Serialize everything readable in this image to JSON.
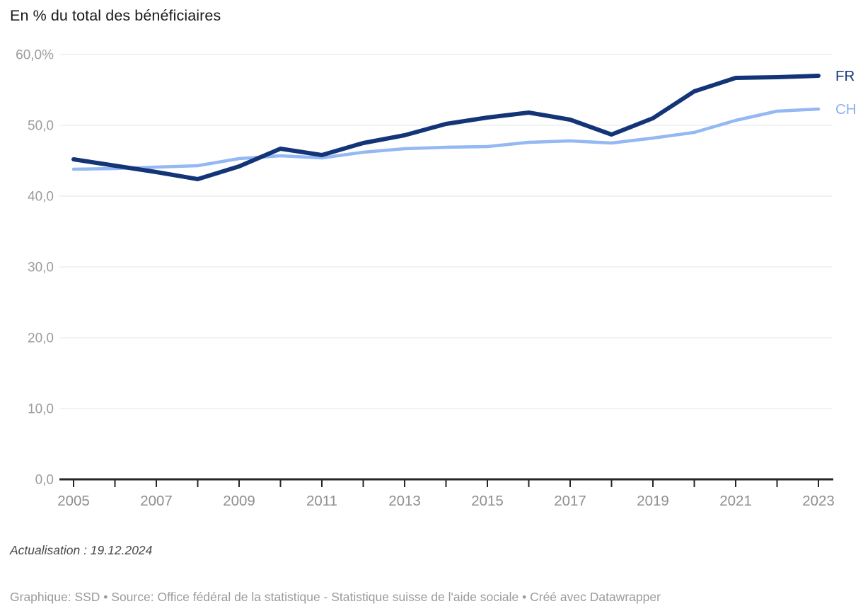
{
  "title": "En % du total des bénéficiaires",
  "notes": "Actualisation : 19.12.2024",
  "footer": {
    "text": "Graphique: SSD • Source: Office fédéral de la statistique - Statistique suisse de l'aide sociale • Créé avec Datawrapper"
  },
  "colors": {
    "fr_line": "#133477",
    "ch_line": "#94b8f3",
    "grid": "#e4e4e4",
    "axis": "#262626",
    "y_tick_label": "#9c9c9c",
    "x_tick_label": "#8f8f8f",
    "title_text": "#1a1a1a",
    "notes_text": "#494949",
    "footer_text": "#9b9b9b"
  },
  "chart_data": {
    "type": "line",
    "title": "En % du total des bénéficiaires",
    "x": [
      2005,
      2006,
      2007,
      2008,
      2009,
      2010,
      2011,
      2012,
      2013,
      2014,
      2015,
      2016,
      2017,
      2018,
      2019,
      2020,
      2021,
      2022,
      2023
    ],
    "series": [
      {
        "name": "FR",
        "color": "#133477",
        "label_color": "#16357c",
        "values": [
          45.2,
          44.3,
          43.4,
          42.4,
          44.2,
          46.7,
          45.8,
          47.5,
          48.6,
          50.2,
          51.1,
          51.8,
          50.8,
          48.7,
          51.0,
          54.8,
          56.7,
          56.8,
          57.0
        ]
      },
      {
        "name": "CH",
        "color": "#94b8f3",
        "label_color": "#8cb1f0",
        "values": [
          43.8,
          43.9,
          44.1,
          44.3,
          45.3,
          45.7,
          45.4,
          46.2,
          46.7,
          46.9,
          47.0,
          47.6,
          47.8,
          47.5,
          48.2,
          49.0,
          50.7,
          52.0,
          52.3
        ]
      }
    ],
    "ylim": [
      0,
      60
    ],
    "yticks": [
      {
        "value": 0,
        "label": "0,0"
      },
      {
        "value": 10,
        "label": "10,0"
      },
      {
        "value": 20,
        "label": "20,0"
      },
      {
        "value": 30,
        "label": "30,0"
      },
      {
        "value": 40,
        "label": "40,0"
      },
      {
        "value": 50,
        "label": "50,0"
      },
      {
        "value": 60,
        "label": "60,0%"
      }
    ],
    "xtick_labels": [
      "2005",
      "2007",
      "2009",
      "2011",
      "2013",
      "2015",
      "2017",
      "2019",
      "2021",
      "2023"
    ],
    "xlabel": "",
    "ylabel": "",
    "grid": "horizontal",
    "legend_position": "line-end-right"
  }
}
